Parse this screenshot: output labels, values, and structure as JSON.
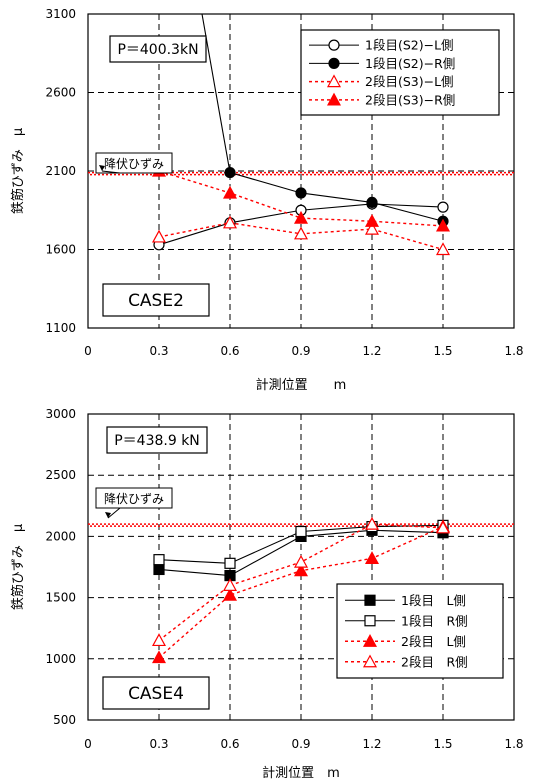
{
  "chart_data": [
    {
      "type": "line",
      "x_ticks": [
        "0",
        "0.3",
        "0.6",
        "0.9",
        "1.2",
        "1.5",
        "1.8"
      ],
      "y_ticks": [
        "1100",
        "1600",
        "2100",
        "2600",
        "3100"
      ],
      "xlabel": "計測位置　　m",
      "ylabel": "鉄筋ひずみ　μ",
      "xlim": [
        0,
        1.8
      ],
      "ylim": [
        1100,
        3100
      ],
      "grid": true,
      "legend_position": "top-right",
      "load_label": "P＝400.3kN",
      "case_label": "CASE2",
      "yield_label": "降伏ひずみ",
      "yield_value": 2090,
      "series": [
        {
          "name": "1段目(S2)−L側",
          "x": [
            0.3,
            0.6,
            0.9,
            1.2,
            1.5
          ],
          "y": [
            1630,
            1770,
            1850,
            1890,
            1870
          ],
          "color": "#000000",
          "line": "solid",
          "marker": "circle",
          "filled": false
        },
        {
          "name": "1段目(S2)−R側",
          "x": [
            0.47,
            0.6,
            0.9,
            1.2,
            1.5
          ],
          "y": [
            3200,
            2090,
            1960,
            1900,
            1780
          ],
          "color": "#000000",
          "line": "solid",
          "marker": "circle",
          "filled": true
        },
        {
          "name": "2段目(S3)−L側",
          "x": [
            0.3,
            0.6,
            0.9,
            1.2,
            1.5
          ],
          "y": [
            1680,
            1770,
            1700,
            1730,
            1600
          ],
          "color": "#ff0000",
          "line": "dotted",
          "marker": "triangle",
          "filled": false
        },
        {
          "name": "2段目(S3)−R側",
          "x": [
            0.3,
            0.6,
            0.9,
            1.2,
            1.5
          ],
          "y": [
            2100,
            1960,
            1800,
            1780,
            1750
          ],
          "color": "#ff0000",
          "line": "dotted",
          "marker": "triangle",
          "filled": true
        }
      ]
    },
    {
      "type": "line",
      "x_ticks": [
        "0",
        "0.3",
        "0.6",
        "0.9",
        "1.2",
        "1.5",
        "1.8"
      ],
      "y_ticks": [
        "500",
        "1000",
        "1500",
        "2000",
        "2500",
        "3000"
      ],
      "xlabel": "計測位置　m",
      "ylabel": "鉄筋ひずみ　μ",
      "xlim": [
        0,
        1.8
      ],
      "ylim": [
        500,
        3000
      ],
      "grid": true,
      "legend_position": "bottom-right",
      "load_label": "P＝438.9 kN",
      "case_label": "CASE4",
      "yield_label": "降伏ひずみ",
      "yield_value": 2100,
      "series": [
        {
          "name": "1段目　L側",
          "x": [
            0.3,
            0.6,
            0.9,
            1.2,
            1.5
          ],
          "y": [
            1730,
            1680,
            2000,
            2050,
            2030
          ],
          "color": "#000000",
          "line": "solid",
          "marker": "square",
          "filled": true
        },
        {
          "name": "1段目　R側",
          "x": [
            0.3,
            0.6,
            0.9,
            1.2,
            1.5
          ],
          "y": [
            1810,
            1780,
            2040,
            2080,
            2090
          ],
          "color": "#000000",
          "line": "solid",
          "marker": "square",
          "filled": false
        },
        {
          "name": "2段目　L側",
          "x": [
            0.3,
            0.6,
            0.9,
            1.2,
            1.5
          ],
          "y": [
            1010,
            1520,
            1720,
            1820,
            2080
          ],
          "color": "#ff0000",
          "line": "dotted",
          "marker": "triangle",
          "filled": true
        },
        {
          "name": "2段目　R側",
          "x": [
            0.3,
            0.6,
            0.9,
            1.2,
            1.5
          ],
          "y": [
            1150,
            1600,
            1790,
            2100,
            2070
          ],
          "color": "#ff0000",
          "line": "dotted",
          "marker": "triangle",
          "filled": false
        }
      ]
    }
  ]
}
